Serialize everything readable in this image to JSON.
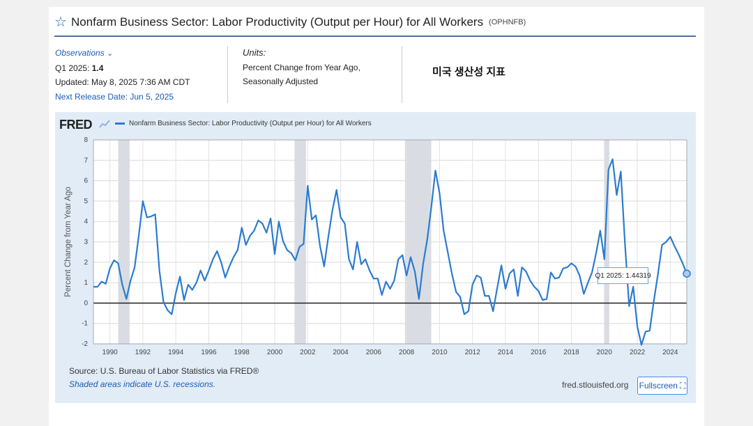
{
  "header": {
    "title": "Nonfarm Business Sector: Labor Productivity (Output per Hour) for All Workers",
    "series_id": "(OPHNFB)"
  },
  "meta": {
    "observations_label": "Observations",
    "observation_period": "Q1 2025:",
    "observation_value": "1.4",
    "updated": "Updated: May 8, 2025 7:36 AM CDT",
    "next_release": "Next Release Date: Jun 5, 2025",
    "units_label": "Units:",
    "units_line1": "Percent Change from Year Ago,",
    "units_line2": "Seasonally Adjusted"
  },
  "note_korean": "미국 생산성 지표",
  "chart": {
    "logo_text": "FRED",
    "source": "Source: U.S. Bureau of Labor Statistics via FRED®",
    "shaded_note": "Shaded areas indicate U.S. recessions.",
    "site": "fred.stlouisfed.org",
    "fullscreen_label": "Fullscreen",
    "tooltip": "Q1 2025:  1.44319"
  },
  "chart_data": {
    "type": "line",
    "title": "",
    "xlabel": "",
    "ylabel": "Percent Change from Year Ago",
    "ylim": [
      -2,
      8
    ],
    "xlim": [
      1989.0,
      2025.0
    ],
    "yticks": [
      -2,
      -1,
      0,
      1,
      2,
      3,
      4,
      5,
      6,
      7,
      8
    ],
    "xticks": [
      1990,
      1992,
      1994,
      1996,
      1998,
      2000,
      2002,
      2004,
      2006,
      2008,
      2010,
      2012,
      2014,
      2016,
      2018,
      2020,
      2022,
      2024
    ],
    "grid": true,
    "legend": "top-left",
    "recessions": [
      [
        1990.5,
        1991.2
      ],
      [
        2001.2,
        2001.9
      ],
      [
        2007.9,
        2009.5
      ],
      [
        2020.0,
        2020.3
      ]
    ],
    "series": [
      {
        "name": "Nonfarm Business Sector: Labor Productivity (Output per Hour) for All Workers",
        "color": "#2b7bd1",
        "points": [
          [
            1989.0,
            0.8
          ],
          [
            1989.25,
            0.8
          ],
          [
            1989.5,
            1.05
          ],
          [
            1989.75,
            0.95
          ],
          [
            1990.0,
            1.7
          ],
          [
            1990.25,
            2.1
          ],
          [
            1990.5,
            1.95
          ],
          [
            1990.75,
            0.9
          ],
          [
            1991.0,
            0.2
          ],
          [
            1991.25,
            1.1
          ],
          [
            1991.5,
            1.75
          ],
          [
            1991.75,
            3.3
          ],
          [
            1992.0,
            5.0
          ],
          [
            1992.25,
            4.2
          ],
          [
            1992.5,
            4.25
          ],
          [
            1992.75,
            4.35
          ],
          [
            1993.0,
            1.6
          ],
          [
            1993.25,
            0.05
          ],
          [
            1993.5,
            -0.35
          ],
          [
            1993.75,
            -0.55
          ],
          [
            1994.0,
            0.5
          ],
          [
            1994.25,
            1.3
          ],
          [
            1994.5,
            0.15
          ],
          [
            1994.75,
            0.9
          ],
          [
            1995.0,
            0.65
          ],
          [
            1995.25,
            1.0
          ],
          [
            1995.5,
            1.6
          ],
          [
            1995.75,
            1.1
          ],
          [
            1996.0,
            1.6
          ],
          [
            1996.25,
            2.15
          ],
          [
            1996.5,
            2.55
          ],
          [
            1996.75,
            2.0
          ],
          [
            1997.0,
            1.25
          ],
          [
            1997.25,
            1.8
          ],
          [
            1997.5,
            2.25
          ],
          [
            1997.75,
            2.6
          ],
          [
            1998.0,
            3.7
          ],
          [
            1998.25,
            2.85
          ],
          [
            1998.5,
            3.3
          ],
          [
            1998.75,
            3.55
          ],
          [
            1999.0,
            4.05
          ],
          [
            1999.25,
            3.9
          ],
          [
            1999.5,
            3.45
          ],
          [
            1999.75,
            4.15
          ],
          [
            2000.0,
            2.4
          ],
          [
            2000.25,
            4.0
          ],
          [
            2000.5,
            3.05
          ],
          [
            2000.75,
            2.6
          ],
          [
            2001.0,
            2.45
          ],
          [
            2001.25,
            2.1
          ],
          [
            2001.5,
            2.75
          ],
          [
            2001.75,
            2.9
          ],
          [
            2002.0,
            5.75
          ],
          [
            2002.25,
            4.1
          ],
          [
            2002.5,
            4.3
          ],
          [
            2002.75,
            2.8
          ],
          [
            2003.0,
            1.8
          ],
          [
            2003.25,
            3.25
          ],
          [
            2003.5,
            4.55
          ],
          [
            2003.75,
            5.55
          ],
          [
            2004.0,
            4.2
          ],
          [
            2004.25,
            3.9
          ],
          [
            2004.5,
            2.15
          ],
          [
            2004.75,
            1.65
          ],
          [
            2005.0,
            3.0
          ],
          [
            2005.25,
            1.9
          ],
          [
            2005.5,
            2.15
          ],
          [
            2005.75,
            1.6
          ],
          [
            2006.0,
            1.2
          ],
          [
            2006.25,
            1.2
          ],
          [
            2006.5,
            0.4
          ],
          [
            2006.75,
            1.05
          ],
          [
            2007.0,
            0.7
          ],
          [
            2007.25,
            1.1
          ],
          [
            2007.5,
            2.15
          ],
          [
            2007.75,
            2.35
          ],
          [
            2008.0,
            1.35
          ],
          [
            2008.25,
            2.25
          ],
          [
            2008.5,
            1.55
          ],
          [
            2008.75,
            0.2
          ],
          [
            2009.0,
            1.9
          ],
          [
            2009.25,
            3.1
          ],
          [
            2009.5,
            4.7
          ],
          [
            2009.75,
            6.5
          ],
          [
            2010.0,
            5.4
          ],
          [
            2010.25,
            3.55
          ],
          [
            2010.5,
            2.5
          ],
          [
            2010.75,
            1.45
          ],
          [
            2011.0,
            0.55
          ],
          [
            2011.25,
            0.3
          ],
          [
            2011.5,
            -0.55
          ],
          [
            2011.75,
            -0.4
          ],
          [
            2012.0,
            0.9
          ],
          [
            2012.25,
            1.35
          ],
          [
            2012.5,
            1.25
          ],
          [
            2012.75,
            0.35
          ],
          [
            2013.0,
            0.35
          ],
          [
            2013.25,
            -0.4
          ],
          [
            2013.5,
            0.75
          ],
          [
            2013.75,
            1.85
          ],
          [
            2014.0,
            0.7
          ],
          [
            2014.25,
            1.45
          ],
          [
            2014.5,
            1.65
          ],
          [
            2014.75,
            0.35
          ],
          [
            2015.0,
            1.75
          ],
          [
            2015.25,
            1.55
          ],
          [
            2015.5,
            1.1
          ],
          [
            2015.75,
            0.8
          ],
          [
            2016.0,
            0.6
          ],
          [
            2016.25,
            0.15
          ],
          [
            2016.5,
            0.2
          ],
          [
            2016.75,
            1.5
          ],
          [
            2017.0,
            1.2
          ],
          [
            2017.25,
            1.25
          ],
          [
            2017.5,
            1.7
          ],
          [
            2017.75,
            1.75
          ],
          [
            2018.0,
            1.95
          ],
          [
            2018.25,
            1.8
          ],
          [
            2018.5,
            1.35
          ],
          [
            2018.75,
            0.45
          ],
          [
            2019.0,
            1.0
          ],
          [
            2019.25,
            1.5
          ],
          [
            2019.5,
            2.45
          ],
          [
            2019.75,
            3.55
          ],
          [
            2020.0,
            2.15
          ],
          [
            2020.25,
            6.55
          ],
          [
            2020.5,
            7.05
          ],
          [
            2020.75,
            5.3
          ],
          [
            2021.0,
            6.45
          ],
          [
            2021.25,
            2.9
          ],
          [
            2021.5,
            -0.15
          ],
          [
            2021.75,
            0.8
          ],
          [
            2022.0,
            -1.15
          ],
          [
            2022.25,
            -2.05
          ],
          [
            2022.5,
            -1.4
          ],
          [
            2022.75,
            -1.35
          ],
          [
            2023.0,
            0.1
          ],
          [
            2023.25,
            1.4
          ],
          [
            2023.5,
            2.85
          ],
          [
            2023.75,
            3.0
          ],
          [
            2024.0,
            3.25
          ],
          [
            2024.25,
            2.8
          ],
          [
            2024.5,
            2.4
          ],
          [
            2024.75,
            1.95
          ],
          [
            2025.0,
            1.44319
          ]
        ]
      }
    ]
  }
}
